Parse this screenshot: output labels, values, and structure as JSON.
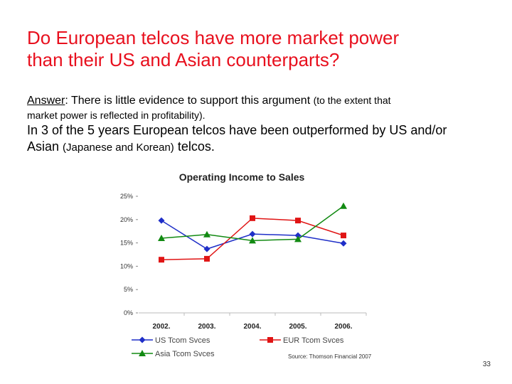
{
  "title_line1": "Do European telcos have more market power",
  "title_line2": "than their US and Asian counterparts?",
  "answer_label": "Answer",
  "answer_text": ": There is little evidence to support this argument ",
  "answer_aside": "(to the extent that",
  "answer_line2": "market power is reflected in profitability).",
  "point_line1": "In 3 of the 5 years European telcos have been outperformed by US and/or",
  "point_line2_a": "Asian ",
  "point_line2_b": "(Japanese and Korean)",
  "point_line2_c": " telcos.",
  "page_number": "33",
  "chart_data": {
    "type": "line",
    "title": "Operating Income to Sales",
    "categories": [
      "2002.",
      "2003.",
      "2004.",
      "2005.",
      "2006."
    ],
    "series": [
      {
        "name": "US  Tcom Svces",
        "color": "#1f2fc8",
        "marker": "diamond",
        "values": [
          19.8,
          13.7,
          16.9,
          16.6,
          14.9
        ]
      },
      {
        "name": "EUR  Tcom Svces",
        "color": "#e01414",
        "marker": "square",
        "values": [
          11.4,
          11.6,
          20.3,
          19.8,
          16.6
        ]
      },
      {
        "name": "Asia  Tcom Svces",
        "color": "#128a12",
        "marker": "triangle",
        "values": [
          16.0,
          16.8,
          15.5,
          15.8,
          22.9
        ]
      }
    ],
    "ylim": [
      0,
      25
    ],
    "yticks": [
      {
        "value": 0,
        "label": "0%"
      },
      {
        "value": 5,
        "label": "5%"
      },
      {
        "value": 10,
        "label": "10%"
      },
      {
        "value": 15,
        "label": "15%"
      },
      {
        "value": 20,
        "label": "20%"
      },
      {
        "value": 25,
        "label": "25%"
      }
    ],
    "source": "Source: Thomson Financial 2007"
  }
}
